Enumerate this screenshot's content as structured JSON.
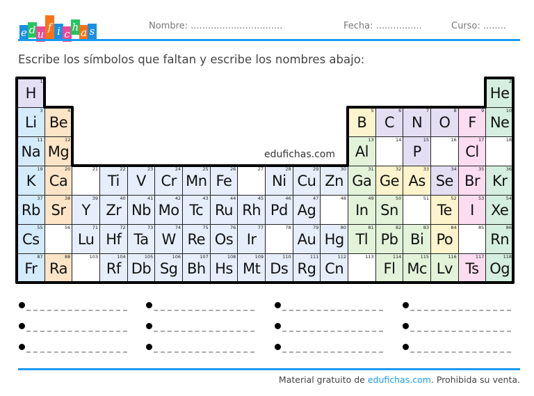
{
  "logo": {
    "text": "edufichas",
    "letters": [
      {
        "ch": "e",
        "color": "#1a8fe3"
      },
      {
        "ch": "d",
        "color": "#22c55e"
      },
      {
        "ch": "u",
        "color": "#ec4899"
      },
      {
        "ch": "f",
        "color": "#f97316"
      },
      {
        "ch": "i",
        "color": "#1a8fe3"
      },
      {
        "ch": "c",
        "color": "#ec4899"
      },
      {
        "ch": "h",
        "color": "#22c55e"
      },
      {
        "ch": "a",
        "color": "#f97316"
      },
      {
        "ch": "s",
        "color": "#1a8fe3"
      }
    ]
  },
  "header": {
    "nombre": "Nombre: ................................",
    "fecha": "Fecha: ................",
    "curso": "Curso: ........"
  },
  "instruction": "Escribe los símbolos que faltan y escribe los nombres abajo:",
  "watermark": "edufichas.com",
  "colors": {
    "accent": "#1a9af0",
    "a": "#d4ebfb",
    "e": "#fde4c6",
    "n": "#e4def3",
    "t": "#e6eefb",
    "p": "#e2f3da",
    "m": "#fdf3cc",
    "x": "#fbdcf0",
    "g": "#d4efdf",
    "w": "#ffffff"
  },
  "table": {
    "rows": [
      [
        [
          1,
          "H",
          "n"
        ],
        null,
        null,
        null,
        null,
        null,
        null,
        null,
        null,
        null,
        null,
        null,
        null,
        null,
        null,
        null,
        null,
        [
          2,
          "He",
          "g"
        ]
      ],
      [
        [
          3,
          "Li",
          "a"
        ],
        [
          4,
          "Be",
          "e"
        ],
        null,
        null,
        null,
        null,
        null,
        null,
        null,
        null,
        null,
        null,
        [
          5,
          "B",
          "m"
        ],
        [
          6,
          "C",
          "n"
        ],
        [
          7,
          "N",
          "n"
        ],
        [
          8,
          "O",
          "n"
        ],
        [
          9,
          "F",
          "x"
        ],
        [
          10,
          "Ne",
          "g"
        ]
      ],
      [
        [
          11,
          "Na",
          "a"
        ],
        [
          12,
          "Mg",
          "e"
        ],
        null,
        null,
        null,
        null,
        null,
        null,
        null,
        null,
        null,
        null,
        [
          13,
          "Al",
          "p"
        ],
        [
          14,
          "",
          "w"
        ],
        [
          15,
          "P",
          "n"
        ],
        [
          16,
          "",
          "w"
        ],
        [
          17,
          "Cl",
          "x"
        ],
        [
          18,
          "",
          "w"
        ]
      ],
      [
        [
          19,
          "K",
          "a"
        ],
        [
          20,
          "Ca",
          "e"
        ],
        [
          21,
          "",
          "w"
        ],
        [
          22,
          "Ti",
          "t"
        ],
        [
          23,
          "V",
          "t"
        ],
        [
          24,
          "Cr",
          "t"
        ],
        [
          25,
          "Mn",
          "t"
        ],
        [
          26,
          "Fe",
          "t"
        ],
        [
          27,
          "",
          "w"
        ],
        [
          28,
          "Ni",
          "t"
        ],
        [
          29,
          "Cu",
          "t"
        ],
        [
          30,
          "Zn",
          "t"
        ],
        [
          31,
          "Ga",
          "p"
        ],
        [
          32,
          "Ge",
          "m"
        ],
        [
          33,
          "As",
          "m"
        ],
        [
          34,
          "Se",
          "n"
        ],
        [
          35,
          "Br",
          "x"
        ],
        [
          36,
          "Kr",
          "g"
        ]
      ],
      [
        [
          37,
          "Rb",
          "a"
        ],
        [
          38,
          "Sr",
          "e"
        ],
        [
          39,
          "Y",
          "t"
        ],
        [
          40,
          "Zr",
          "t"
        ],
        [
          41,
          "Nb",
          "t"
        ],
        [
          42,
          "Mo",
          "t"
        ],
        [
          43,
          "Tc",
          "t"
        ],
        [
          44,
          "Ru",
          "t"
        ],
        [
          45,
          "Rh",
          "t"
        ],
        [
          46,
          "Pd",
          "t"
        ],
        [
          47,
          "Ag",
          "t"
        ],
        [
          48,
          "",
          "w"
        ],
        [
          49,
          "In",
          "p"
        ],
        [
          50,
          "Sn",
          "p"
        ],
        [
          51,
          "",
          "w"
        ],
        [
          52,
          "Te",
          "m"
        ],
        [
          53,
          "I",
          "x"
        ],
        [
          54,
          "Xe",
          "g"
        ]
      ],
      [
        [
          55,
          "Cs",
          "a"
        ],
        [
          56,
          "",
          "w"
        ],
        [
          71,
          "Lu",
          "t"
        ],
        [
          72,
          "Hf",
          "t"
        ],
        [
          73,
          "Ta",
          "t"
        ],
        [
          74,
          "W",
          "t"
        ],
        [
          75,
          "Re",
          "t"
        ],
        [
          76,
          "Os",
          "t"
        ],
        [
          77,
          "Ir",
          "t"
        ],
        [
          78,
          "",
          "w"
        ],
        [
          79,
          "Au",
          "t"
        ],
        [
          80,
          "Hg",
          "t"
        ],
        [
          81,
          "Tl",
          "p"
        ],
        [
          82,
          "Pb",
          "p"
        ],
        [
          83,
          "Bi",
          "p"
        ],
        [
          84,
          "Po",
          "m"
        ],
        [
          85,
          "",
          "w"
        ],
        [
          86,
          "Rn",
          "g"
        ]
      ],
      [
        [
          87,
          "Fr",
          "a"
        ],
        [
          88,
          "Ra",
          "e"
        ],
        [
          103,
          "",
          "w"
        ],
        [
          104,
          "Rf",
          "t"
        ],
        [
          105,
          "Db",
          "t"
        ],
        [
          106,
          "Sg",
          "t"
        ],
        [
          107,
          "Bh",
          "t"
        ],
        [
          108,
          "Hs",
          "t"
        ],
        [
          109,
          "Mt",
          "t"
        ],
        [
          110,
          "Ds",
          "t"
        ],
        [
          111,
          "Rg",
          "t"
        ],
        [
          112,
          "Cn",
          "t"
        ],
        [
          113,
          "",
          "w"
        ],
        [
          114,
          "Fl",
          "p"
        ],
        [
          115,
          "Mc",
          "p"
        ],
        [
          116,
          "Lv",
          "p"
        ],
        [
          117,
          "Ts",
          "x"
        ],
        [
          118,
          "Og",
          "g"
        ]
      ]
    ]
  },
  "answer_lines": {
    "columns": 4,
    "rows": 3
  },
  "footer": {
    "prefix": "Material gratuito de ",
    "link": "edufichas.com",
    "suffix": ". Prohibida su venta."
  }
}
